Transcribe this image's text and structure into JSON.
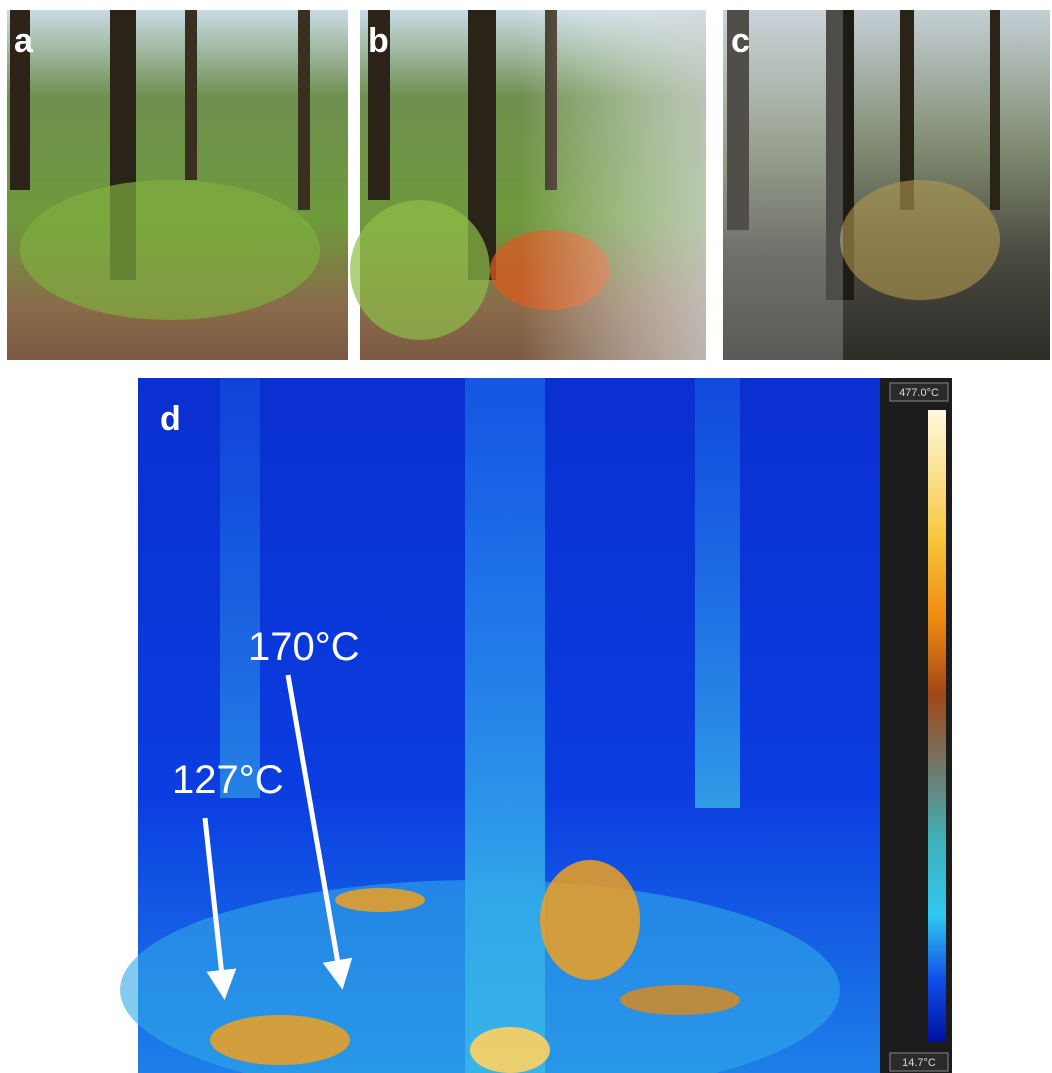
{
  "panels": [
    {
      "label": "a"
    },
    {
      "label": "b"
    },
    {
      "label": "c"
    },
    {
      "label": "d"
    }
  ],
  "annotations": [
    {
      "text": "170°C"
    },
    {
      "text": "127°C"
    }
  ],
  "colorbar": {
    "max_label": "477.0°C",
    "min_label": "14.7°C"
  }
}
